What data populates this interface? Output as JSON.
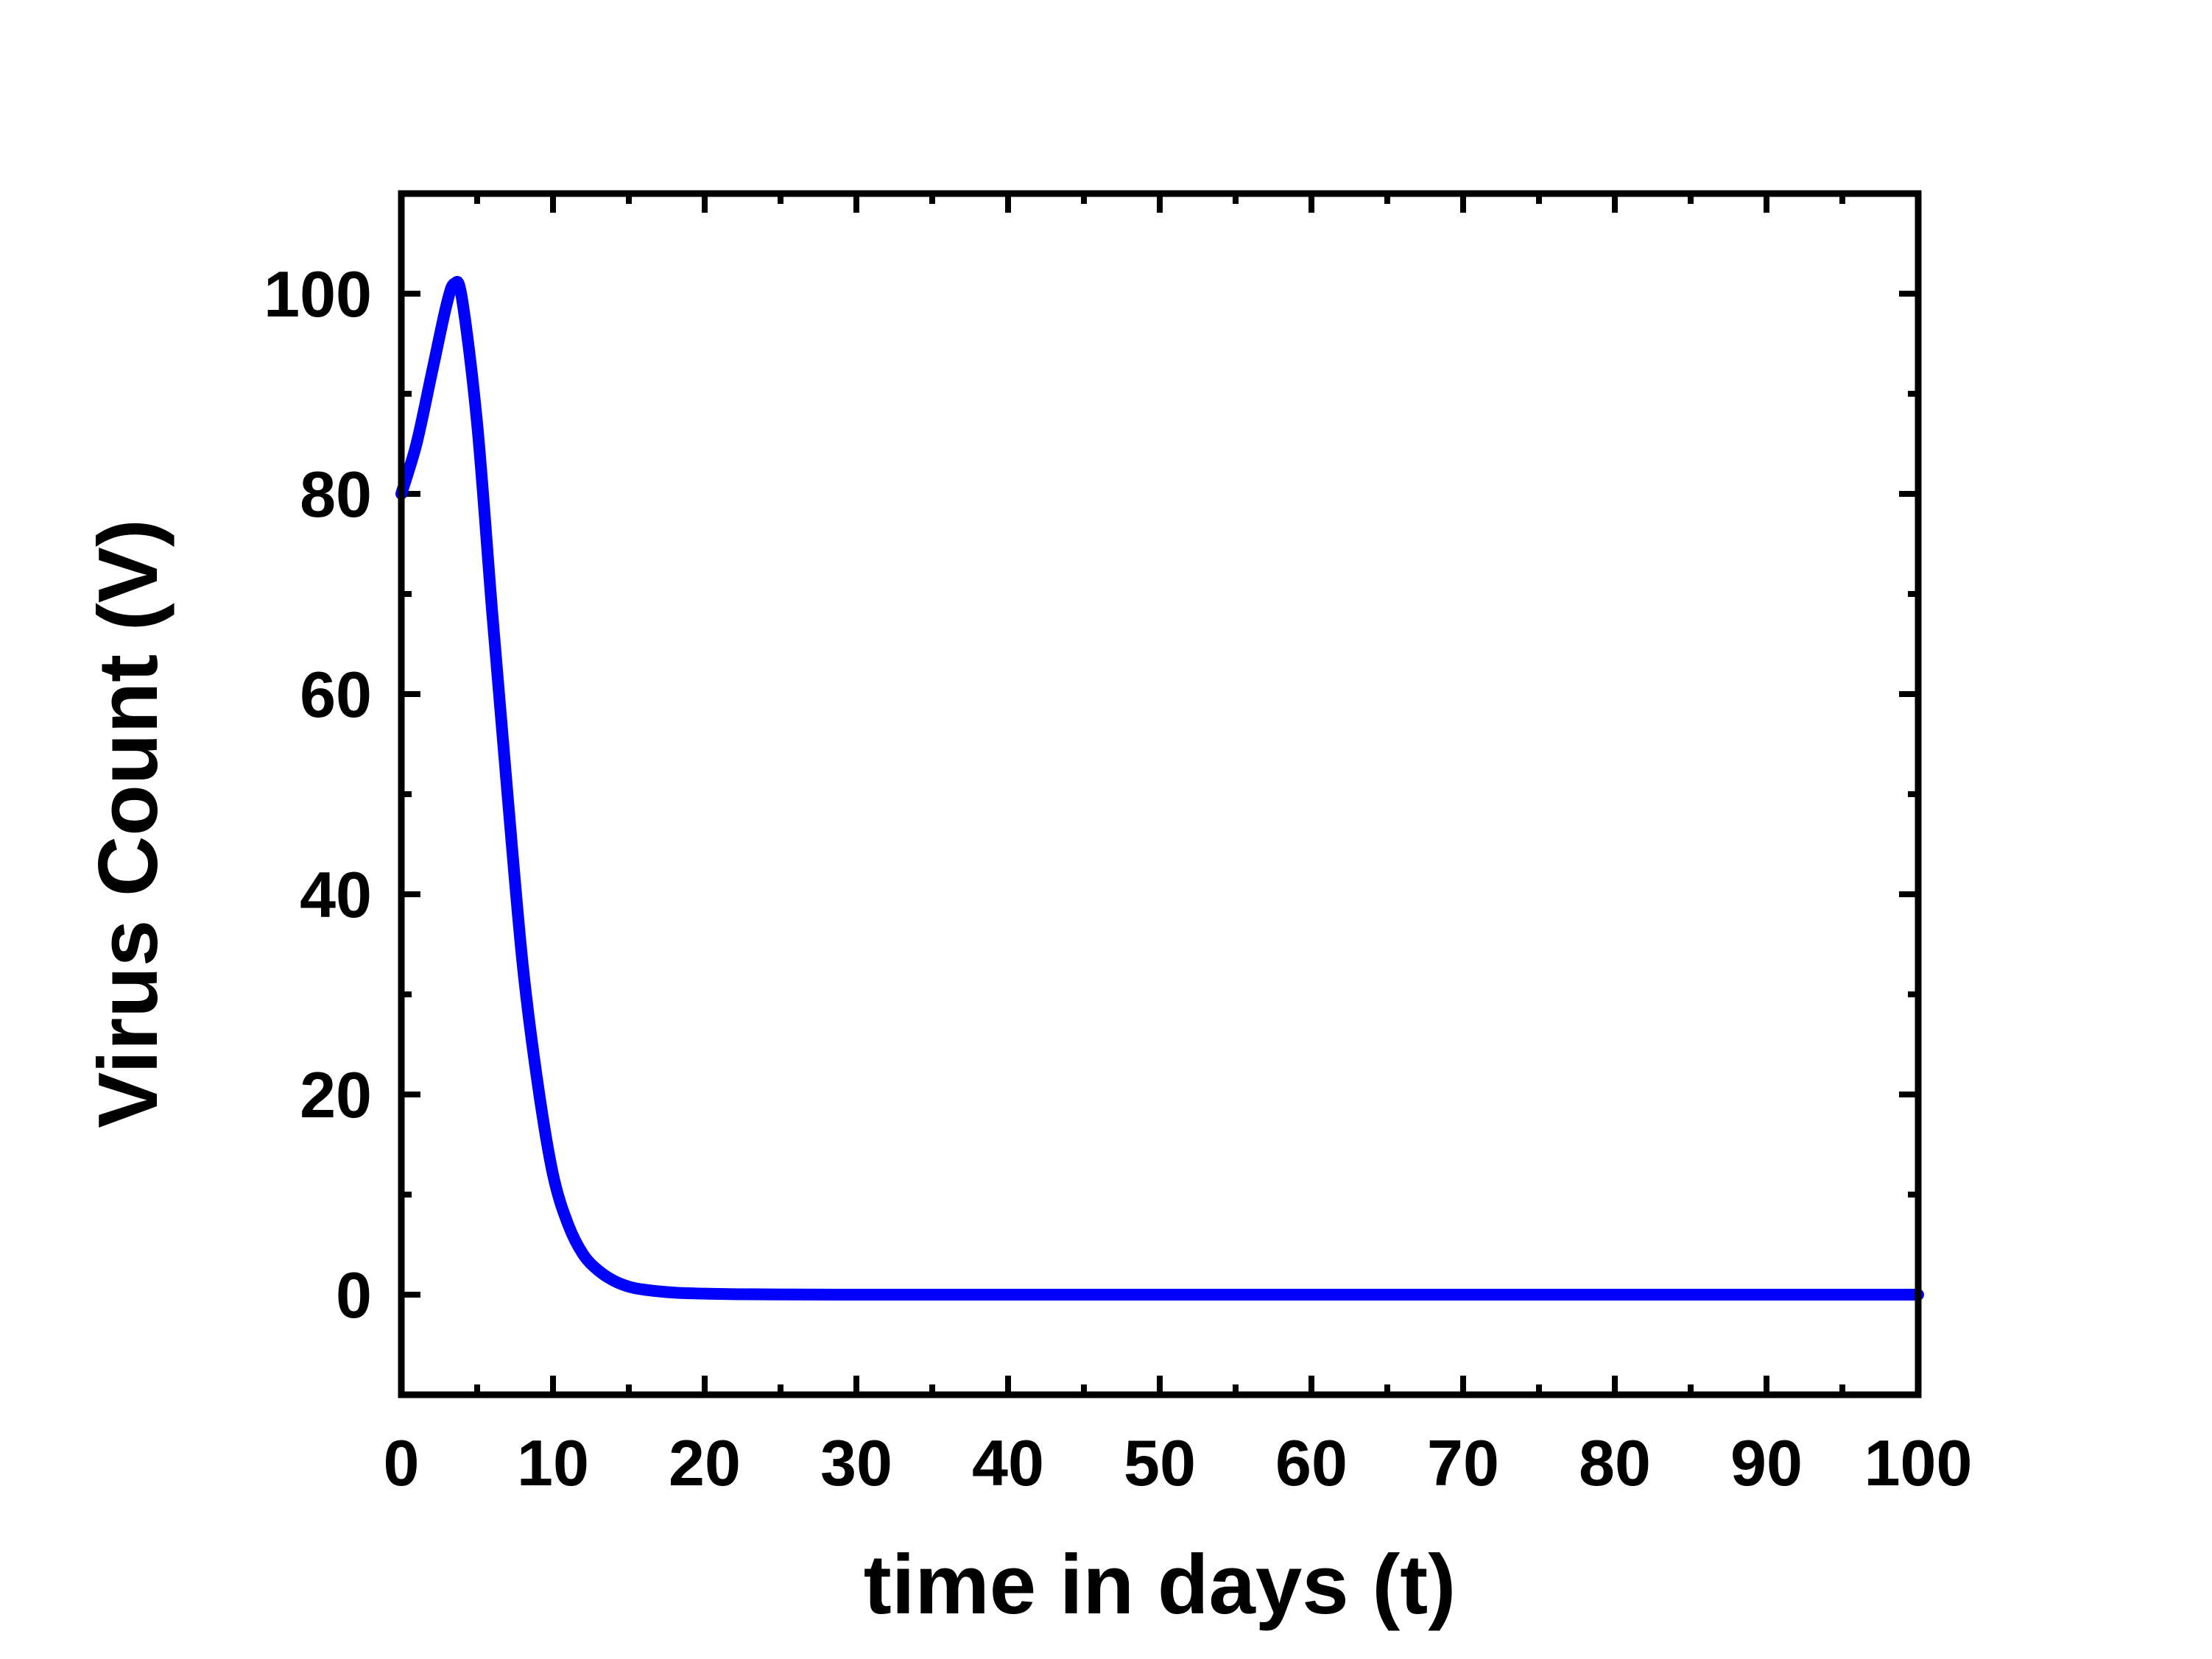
{
  "chart_data": {
    "type": "line",
    "title": "",
    "xlabel": "time in days (t)",
    "ylabel": "Virus Count (V)",
    "xlim": [
      0,
      100
    ],
    "ylim": [
      -10,
      110
    ],
    "x_ticks": [
      0,
      10,
      20,
      30,
      40,
      50,
      60,
      70,
      80,
      90,
      100
    ],
    "y_ticks": [
      0,
      20,
      40,
      60,
      80,
      100
    ],
    "x_tick_labels": [
      "0",
      "10",
      "20",
      "30",
      "40",
      "50",
      "60",
      "70",
      "80",
      "90",
      "100"
    ],
    "y_tick_labels": [
      "0",
      "20",
      "40",
      "60",
      "80",
      "100"
    ],
    "grid": false,
    "legend": "none",
    "series": [
      {
        "color": "#0000ff",
        "x": [
          0,
          1,
          2,
          3,
          3.5,
          4,
          5,
          6,
          7,
          8,
          9,
          10,
          11,
          12,
          13,
          14,
          15,
          16,
          18,
          20,
          22,
          25,
          30,
          40,
          50,
          60,
          70,
          80,
          90,
          100
        ],
        "y": [
          80,
          85,
          92,
          99,
          101,
          99.5,
          87,
          68,
          50,
          33,
          21,
          12,
          7,
          4,
          2.4,
          1.4,
          0.8,
          0.5,
          0.2,
          0.1,
          0.05,
          0.02,
          0,
          0,
          0,
          0,
          0,
          0,
          0,
          0
        ]
      }
    ]
  }
}
